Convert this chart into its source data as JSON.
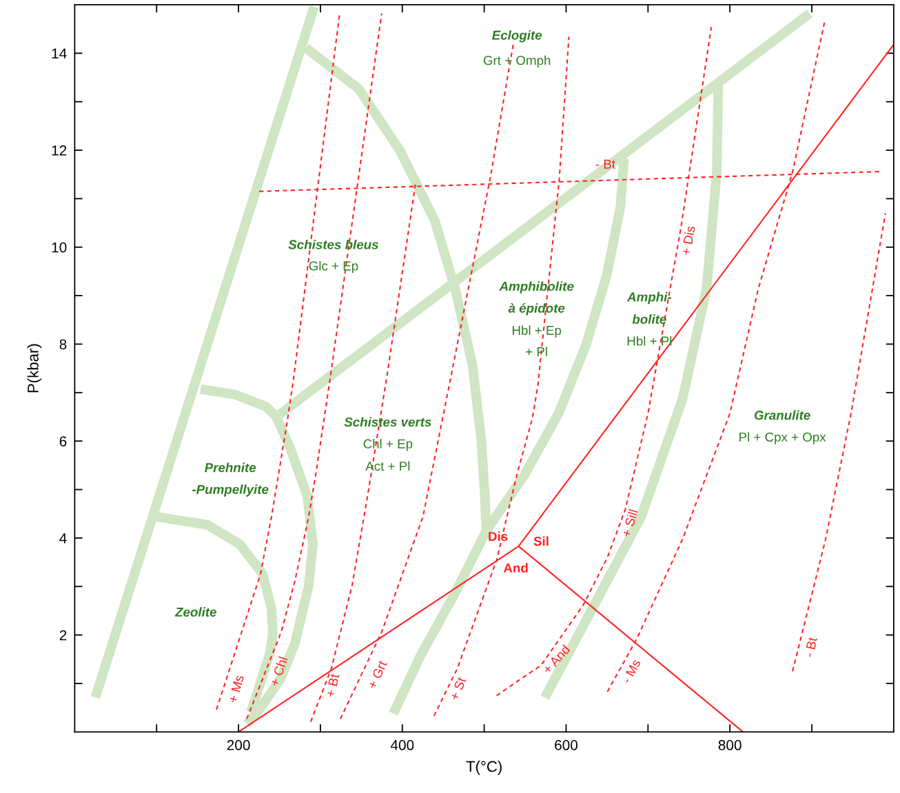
{
  "chart_data": {
    "type": "line",
    "xlabel": "T(°C)",
    "ylabel": "P(kbar)",
    "xlim": [
      0,
      1000
    ],
    "ylim": [
      0,
      15
    ],
    "xticks": [
      {
        "value": 100,
        "label": null
      },
      200,
      {
        "value": 300,
        "label": null
      },
      400,
      {
        "value": 500,
        "label": null
      },
      600,
      {
        "value": 700,
        "label": null
      },
      800,
      {
        "value": 900,
        "label": null
      }
    ],
    "yticks": [
      {
        "value": 1,
        "label": null
      },
      2,
      {
        "value": 3,
        "label": null
      },
      4,
      {
        "value": 5,
        "label": null
      },
      6,
      {
        "value": 7,
        "label": null
      },
      8,
      {
        "value": 9,
        "label": null
      },
      10,
      {
        "value": 11,
        "label": null
      },
      12,
      {
        "value": 13,
        "label": null
      },
      14
    ],
    "grid": false,
    "legend": false,
    "marker": "none",
    "series": [
      {
        "color": "#cfe5c3",
        "line_style": "solid",
        "x": [
          25.2,
          292.4
        ],
        "values": [
          0.71,
          14.96
        ]
      },
      {
        "color": "#cfe5c3",
        "line_style": "solid",
        "x": [
          282.4,
          347.1,
          397.5,
          439.5,
          464.7,
          485.7,
          496.6,
          500.8,
          502.5
        ],
        "values": [
          14.11,
          13.26,
          11.98,
          10.55,
          9.13,
          7.57,
          6.0,
          4.86,
          4.15
        ]
      },
      {
        "color": "#cfe5c3",
        "line_style": "solid",
        "x": [
          389.1,
          422.7,
          464.7,
          502.5,
          548.7,
          590.8,
          624.4,
          649.6,
          666.4,
          670.6
        ],
        "values": [
          0.38,
          1.59,
          2.87,
          4.15,
          5.29,
          6.57,
          7.99,
          9.42,
          10.84,
          11.83
        ]
      },
      {
        "color": "#cfe5c3",
        "line_style": "solid",
        "x": [
          246.2,
          897.5
        ],
        "values": [
          6.5,
          14.82
        ]
      },
      {
        "color": "#cfe5c3",
        "line_style": "solid",
        "x": [
          574,
          624.4,
          691.6,
          742,
          771.4,
          784,
          785.7
        ],
        "values": [
          0.71,
          2.3,
          4.44,
          6.86,
          9.13,
          11.55,
          13.33
        ]
      },
      {
        "color": "#cfe5c3",
        "line_style": "solid",
        "x": [
          153.8,
          195.8,
          233.6,
          246.2,
          263,
          284,
          290.8,
          285.7,
          268.9,
          252.1,
          223.5,
          210.1
        ],
        "values": [
          7.07,
          6.96,
          6.71,
          6.5,
          5.86,
          4.86,
          3.87,
          3.02,
          1.83,
          1.12,
          0.41,
          0.17
        ]
      },
      {
        "color": "#cfe5c3",
        "line_style": "solid",
        "x": [
          99.2,
          162.2,
          201.7,
          229.4,
          240.3,
          242,
          237.8,
          215.1
        ],
        "values": [
          4.44,
          4.27,
          3.87,
          3.26,
          2.55,
          2.02,
          1.59,
          0.41
        ]
      },
      {
        "color": "#ff2222",
        "line_style": "dashed",
        "x": [
          173.1,
          226.9,
          240.3,
          258.8,
          267.2,
          323.5
        ],
        "values": [
          0.46,
          3.26,
          4.44,
          6.33,
          7.28,
          14.82
        ]
      },
      {
        "color": "#ff2222",
        "line_style": "dashed",
        "x": [
          210.1,
          252.1,
          268.9,
          285.7,
          294.1,
          311.8,
          374.8
        ],
        "values": [
          0.27,
          2.06,
          3.12,
          4.44,
          5.29,
          7.28,
          14.82
        ]
      },
      {
        "color": "#ff2222",
        "line_style": "dashed",
        "x": [
          288.2,
          313.4,
          338.7,
          358,
          380.7,
          416
        ],
        "values": [
          0.21,
          1.31,
          3.02,
          4.91,
          7.28,
          11.29
        ]
      },
      {
        "color": "#ff2222",
        "line_style": "dashed",
        "x": [
          324.4,
          374.8,
          425.2,
          458.8,
          507.6,
          536.1
        ],
        "values": [
          0.27,
          2.06,
          4.44,
          7.28,
          11.45,
          14.25
        ]
      },
      {
        "color": "#ff2222",
        "line_style": "dashed",
        "x": [
          438.7,
          467.2,
          515.1,
          540.3,
          558.8,
          565.5,
          591.6,
          603.4
        ],
        "values": [
          0.33,
          1.31,
          3.54,
          5.33,
          6.47,
          7.14,
          11.39,
          14.34
        ]
      },
      {
        "color": "#ff2222",
        "line_style": "dashed",
        "x": [
          515.1,
          569.7,
          621,
          650.4,
          672.3,
          700,
          740.3,
          777.3
        ],
        "values": [
          0.75,
          1.38,
          2.62,
          3.6,
          4.59,
          6.57,
          10.41,
          14.54
        ]
      },
      {
        "color": "#ff2222",
        "line_style": "dashed",
        "x": [
          650.4,
          686.6,
          742,
          800,
          834.5,
          876.5,
          916
        ],
        "values": [
          0.83,
          1.93,
          3.97,
          6.57,
          9.13,
          11.55,
          14.68
        ]
      },
      {
        "color": "#ff2222",
        "line_style": "dashed",
        "x": [
          876.5,
          916.8,
          947.9,
          989.9
        ],
        "values": [
          1.25,
          3.97,
          6.57,
          10.7
        ]
      },
      {
        "color": "#ff2222",
        "line_style": "dashed",
        "x": [
          225.2,
          985.7
        ],
        "values": [
          11.15,
          11.56
        ]
      },
      {
        "color": "#ff2222",
        "line_style": "solid",
        "x": [
          200,
          542,
          1000
        ],
        "values": [
          0,
          3.83,
          14.18
        ]
      },
      {
        "color": "#ff2222",
        "line_style": "solid",
        "x": [
          542,
          816
        ],
        "values": [
          3.83,
          0
        ]
      }
    ],
    "annotations": [
      "Eclogite",
      "Grt + Omph",
      "Schistes bleus",
      "Glc + Ep",
      "Amphibolite",
      "à épidote",
      "Hbl + Ep",
      "+ Pl",
      "Amphi-",
      "bolite",
      "Hbl + Pl",
      "Schistes verts",
      "Chl + Ep",
      "Act + Pl",
      "Granulite",
      "Pl + Cpx + Opx",
      "Prehnite",
      "-Pumpellyite",
      "Zeolite",
      "Dis",
      "Sil",
      "And",
      "- Bt",
      "+ Ms",
      "+ Chl",
      "+ Bt",
      "+ Grt",
      "+ St",
      "+ And",
      "- Ms",
      "- Bt",
      "+ Sill",
      "+ Dis"
    ]
  }
}
